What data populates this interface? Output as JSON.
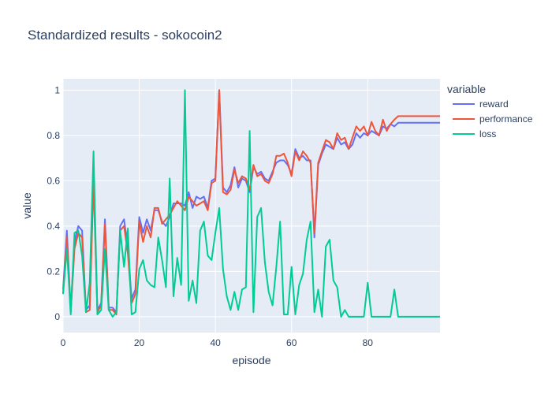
{
  "chart_data": {
    "type": "line",
    "title": "Standardized results - sokocoin2",
    "xlabel": "episode",
    "ylabel": "value",
    "xlim": [
      0,
      99
    ],
    "ylim": [
      -0.07,
      1.05
    ],
    "xticks": [
      0,
      20,
      40,
      60,
      80
    ],
    "yticks": [
      0,
      0.2,
      0.4,
      0.6,
      0.8,
      1
    ],
    "grid": true,
    "legend": {
      "title": "variable",
      "placement": "right"
    },
    "x": [
      0,
      1,
      2,
      3,
      4,
      5,
      6,
      7,
      8,
      9,
      10,
      11,
      12,
      13,
      14,
      15,
      16,
      17,
      18,
      19,
      20,
      21,
      22,
      23,
      24,
      25,
      26,
      27,
      28,
      29,
      30,
      31,
      32,
      33,
      34,
      35,
      36,
      37,
      38,
      39,
      40,
      41,
      42,
      43,
      44,
      45,
      46,
      47,
      48,
      49,
      50,
      51,
      52,
      53,
      54,
      55,
      56,
      57,
      58,
      59,
      60,
      61,
      62,
      63,
      64,
      65,
      66,
      67,
      68,
      69,
      70,
      71,
      72,
      73,
      74,
      75,
      76,
      77,
      78,
      79,
      80,
      81,
      82,
      83,
      84,
      85,
      86,
      87,
      88,
      89,
      90,
      91,
      92,
      93,
      94,
      95,
      96,
      97,
      98,
      99
    ],
    "series": [
      {
        "name": "reward",
        "color": "#636efa",
        "values": [
          0.12,
          0.38,
          0.03,
          0.33,
          0.4,
          0.38,
          0.03,
          0.05,
          0.62,
          0.03,
          0.06,
          0.43,
          0.04,
          0.04,
          0.02,
          0.4,
          0.43,
          0.3,
          0.08,
          0.12,
          0.44,
          0.37,
          0.43,
          0.38,
          0.47,
          0.47,
          0.42,
          0.4,
          0.44,
          0.5,
          0.5,
          0.5,
          0.49,
          0.55,
          0.48,
          0.53,
          0.52,
          0.53,
          0.48,
          0.6,
          0.61,
          1.0,
          0.57,
          0.55,
          0.58,
          0.66,
          0.57,
          0.61,
          0.6,
          0.55,
          0.66,
          0.63,
          0.64,
          0.61,
          0.6,
          0.64,
          0.68,
          0.69,
          0.69,
          0.67,
          0.63,
          0.74,
          0.7,
          0.71,
          0.69,
          0.69,
          0.35,
          0.67,
          0.72,
          0.76,
          0.75,
          0.74,
          0.79,
          0.76,
          0.77,
          0.74,
          0.76,
          0.81,
          0.79,
          0.81,
          0.8,
          0.82,
          0.81,
          0.8,
          0.84,
          0.83,
          0.85,
          0.84,
          0.856,
          0.856,
          0.856,
          0.856,
          0.856,
          0.856,
          0.856,
          0.856,
          0.856,
          0.856,
          0.856,
          0.856
        ]
      },
      {
        "name": "performance",
        "color": "#ef553b",
        "values": [
          0.1,
          0.35,
          0.02,
          0.3,
          0.37,
          0.35,
          0.02,
          0.03,
          0.6,
          0.02,
          0.05,
          0.41,
          0.03,
          0.03,
          0.01,
          0.38,
          0.4,
          0.28,
          0.06,
          0.1,
          0.42,
          0.33,
          0.4,
          0.35,
          0.48,
          0.48,
          0.41,
          0.43,
          0.45,
          0.48,
          0.51,
          0.49,
          0.47,
          0.53,
          0.51,
          0.49,
          0.5,
          0.51,
          0.47,
          0.59,
          0.6,
          1.0,
          0.55,
          0.54,
          0.56,
          0.65,
          0.59,
          0.62,
          0.61,
          0.56,
          0.67,
          0.62,
          0.63,
          0.6,
          0.59,
          0.63,
          0.71,
          0.71,
          0.72,
          0.68,
          0.62,
          0.73,
          0.69,
          0.73,
          0.71,
          0.68,
          0.37,
          0.68,
          0.73,
          0.78,
          0.77,
          0.74,
          0.81,
          0.78,
          0.79,
          0.74,
          0.79,
          0.84,
          0.82,
          0.84,
          0.8,
          0.86,
          0.82,
          0.8,
          0.87,
          0.82,
          0.85,
          0.87,
          0.885,
          0.885,
          0.885,
          0.885,
          0.885,
          0.885,
          0.885,
          0.885,
          0.885,
          0.885,
          0.885,
          0.885
        ]
      },
      {
        "name": "loss",
        "color": "#00cc96",
        "values": [
          0.1,
          0.3,
          0.01,
          0.37,
          0.38,
          0.27,
          0.02,
          0.15,
          0.73,
          0.01,
          0.03,
          0.3,
          0.03,
          0.0,
          0.02,
          0.38,
          0.22,
          0.39,
          0.01,
          0.02,
          0.21,
          0.25,
          0.16,
          0.14,
          0.13,
          0.35,
          0.25,
          0.13,
          0.61,
          0.09,
          0.26,
          0.14,
          1.0,
          0.07,
          0.16,
          0.06,
          0.38,
          0.42,
          0.27,
          0.25,
          0.37,
          0.48,
          0.21,
          0.09,
          0.03,
          0.11,
          0.03,
          0.12,
          0.13,
          0.82,
          0.02,
          0.44,
          0.48,
          0.24,
          0.11,
          0.05,
          0.22,
          0.42,
          0.01,
          0.01,
          0.22,
          0.01,
          0.14,
          0.19,
          0.34,
          0.42,
          0.02,
          0.12,
          0.0,
          0.31,
          0.34,
          0.16,
          0.13,
          0.0,
          0.03,
          0.0,
          0.0,
          0.0,
          0.0,
          0.0,
          0.15,
          0.0,
          0.0,
          0.0,
          0.0,
          0.0,
          0.0,
          0.12,
          0.0,
          0.0,
          0.0,
          0.0,
          0.0,
          0.0,
          0.0,
          0.0,
          0.0,
          0.0,
          0.0,
          0.0
        ]
      }
    ]
  }
}
